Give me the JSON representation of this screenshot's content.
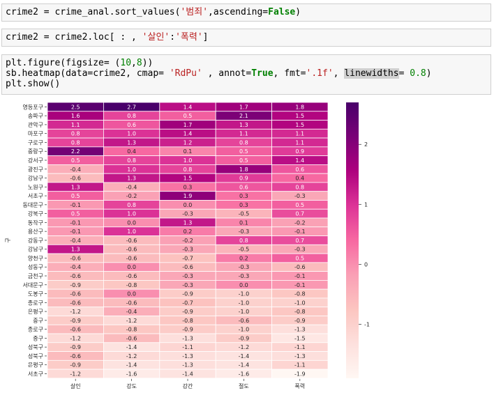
{
  "code_cells": [
    {
      "parts": [
        {
          "t": "crime2 = crime_anal.sort_values(",
          "c": ""
        },
        {
          "t": "'범죄'",
          "c": "str"
        },
        {
          "t": ",ascending=",
          "c": ""
        },
        {
          "t": "False",
          "c": "kw"
        },
        {
          "t": ")",
          "c": ""
        }
      ]
    },
    {
      "parts": [
        {
          "t": "crime2 = crime2.loc[ : , ",
          "c": ""
        },
        {
          "t": "'살인'",
          "c": "str"
        },
        {
          "t": ":",
          "c": ""
        },
        {
          "t": "'폭력'",
          "c": "str"
        },
        {
          "t": "]",
          "c": ""
        }
      ]
    },
    {
      "parts": [
        {
          "t": "plt.figure(figsize= (",
          "c": ""
        },
        {
          "t": "10",
          "c": "num"
        },
        {
          "t": ",",
          "c": ""
        },
        {
          "t": "8",
          "c": "num"
        },
        {
          "t": "))\nsb.heatmap(data=crime2, cmap= ",
          "c": ""
        },
        {
          "t": "'RdPu'",
          "c": "str"
        },
        {
          "t": " , annot=",
          "c": ""
        },
        {
          "t": "True",
          "c": "kw"
        },
        {
          "t": ", fmt=",
          "c": ""
        },
        {
          "t": "'.1f'",
          "c": "str"
        },
        {
          "t": ", ",
          "c": ""
        },
        {
          "t": "linewidths",
          "c": "hl"
        },
        {
          "t": "= ",
          "c": ""
        },
        {
          "t": "0.8",
          "c": "num"
        },
        {
          "t": ")\nplt.show()",
          "c": ""
        }
      ]
    }
  ],
  "chart_data": {
    "type": "heatmap",
    "cmap": "RdPu",
    "ylabel": "구",
    "xlabel": "",
    "columns": [
      "살인",
      "강도",
      "강간",
      "절도",
      "폭력"
    ],
    "rows": [
      "영등포구",
      "송파구",
      "관악구",
      "마포구",
      "구로구",
      "중랑구",
      "강서구",
      "광진구",
      "강남구",
      "노원구",
      "서초구",
      "동대문구",
      "강북구",
      "동작구",
      "용산구",
      "강동구",
      "강남구",
      "양천구",
      "성동구",
      "금천구",
      "서대문구",
      "도봉구",
      "종로구",
      "은평구",
      "중구",
      "종로구",
      "중구",
      "성북구",
      "성북구",
      "은평구",
      "서초구"
    ],
    "values": [
      [
        2.5,
        2.7,
        1.4,
        1.7,
        1.8
      ],
      [
        1.6,
        0.8,
        0.5,
        2.1,
        1.5
      ],
      [
        1.1,
        0.6,
        1.7,
        1.3,
        1.5
      ],
      [
        0.8,
        1.0,
        1.4,
        1.1,
        1.1
      ],
      [
        0.8,
        1.3,
        1.2,
        0.8,
        1.1
      ],
      [
        2.2,
        0.4,
        0.1,
        0.5,
        0.9
      ],
      [
        0.5,
        0.8,
        1.0,
        0.5,
        1.4
      ],
      [
        -0.4,
        1.0,
        0.8,
        1.8,
        0.6
      ],
      [
        -0.6,
        1.3,
        1.5,
        0.9,
        0.4
      ],
      [
        1.3,
        -0.4,
        0.3,
        0.6,
        0.8
      ],
      [
        0.5,
        -0.2,
        1.9,
        0.3,
        -0.3
      ],
      [
        -0.1,
        0.8,
        -0.0,
        0.3,
        0.5
      ],
      [
        0.5,
        1.0,
        -0.3,
        -0.5,
        0.7
      ],
      [
        -0.1,
        0.0,
        1.3,
        0.1,
        -0.2
      ],
      [
        -0.1,
        1.0,
        0.2,
        -0.3,
        -0.1
      ],
      [
        -0.4,
        -0.6,
        -0.2,
        0.8,
        0.7
      ],
      [
        1.3,
        -0.6,
        -0.3,
        -0.5,
        -0.3
      ],
      [
        -0.6,
        -0.6,
        -0.7,
        0.2,
        0.5
      ],
      [
        -0.4,
        0.0,
        -0.6,
        -0.3,
        -0.6
      ],
      [
        -0.6,
        -0.6,
        -0.3,
        -0.3,
        -0.1
      ],
      [
        -0.9,
        -0.8,
        -0.3,
        0.0,
        -0.1
      ],
      [
        -0.6,
        0.0,
        -0.9,
        -1.0,
        -0.8
      ],
      [
        -0.6,
        -0.6,
        -0.7,
        -1.0,
        -1.0
      ],
      [
        -1.2,
        -0.4,
        -0.9,
        -1.0,
        -0.8
      ],
      [
        -0.9,
        -1.2,
        -0.8,
        -0.6,
        -0.9
      ],
      [
        -0.6,
        -0.8,
        -0.9,
        -1.0,
        -1.3
      ],
      [
        -1.2,
        -0.6,
        -1.3,
        -0.9,
        -1.5
      ],
      [
        -0.9,
        -1.4,
        -1.1,
        -1.2,
        -1.1
      ],
      [
        -0.6,
        -1.2,
        -1.3,
        -1.4,
        -1.3
      ],
      [
        -0.9,
        -1.4,
        -1.3,
        -1.4,
        -1.1
      ],
      [
        -1.2,
        -1.6,
        -1.4,
        -1.6,
        -1.9
      ]
    ],
    "vmin": -1.9,
    "vmax": 2.7,
    "colorbar_ticks": [
      2,
      1,
      0,
      -1
    ],
    "colorbar_tick_labels": [
      "2",
      "1",
      "0",
      "-1"
    ],
    "annotation_format": ".1f"
  }
}
